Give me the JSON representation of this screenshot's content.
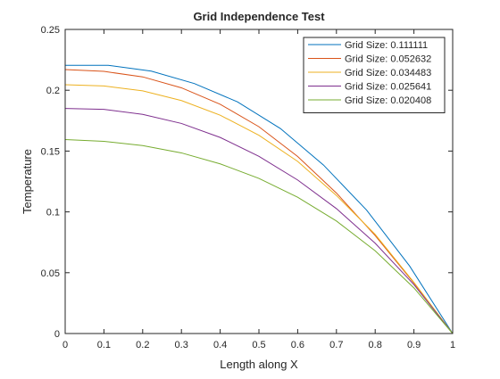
{
  "chart_data": {
    "type": "line",
    "title": "Grid Independence Test",
    "xlabel": "Length along X",
    "ylabel": "Temperature",
    "xlim": [
      0,
      1
    ],
    "ylim": [
      0,
      0.25
    ],
    "xticks": [
      "0",
      "0.1",
      "0.2",
      "0.3",
      "0.4",
      "0.5",
      "0.6",
      "0.7",
      "0.8",
      "0.9",
      "1"
    ],
    "yticks": [
      "0",
      "0.05",
      "0.1",
      "0.15",
      "0.2",
      "0.25"
    ],
    "grid": false,
    "legend_position": "top-right",
    "series": [
      {
        "name": "Grid Size: 0.111111",
        "color": "#0072BD",
        "x": [
          0,
          0.111111,
          0.222222,
          0.333333,
          0.444444,
          0.555556,
          0.666667,
          0.777778,
          0.888889,
          1
        ],
        "y": [
          0.2205,
          0.2205,
          0.2157,
          0.2055,
          0.1905,
          0.1685,
          0.1385,
          0.1015,
          0.0555,
          0
        ]
      },
      {
        "name": "Grid Size: 0.052632",
        "color": "#D95319",
        "x": [
          0,
          0.1,
          0.2,
          0.3,
          0.4,
          0.5,
          0.6,
          0.7,
          0.8,
          0.9,
          1
        ],
        "y": [
          0.217,
          0.2155,
          0.211,
          0.202,
          0.1885,
          0.17,
          0.1455,
          0.1155,
          0.0805,
          0.0415,
          0
        ]
      },
      {
        "name": "Grid Size: 0.034483",
        "color": "#EDB120",
        "x": [
          0,
          0.1,
          0.2,
          0.3,
          0.4,
          0.5,
          0.6,
          0.7,
          0.8,
          0.9,
          1
        ],
        "y": [
          0.2045,
          0.2035,
          0.1995,
          0.1915,
          0.1795,
          0.163,
          0.1415,
          0.1135,
          0.0815,
          0.042,
          0
        ]
      },
      {
        "name": "Grid Size: 0.025641",
        "color": "#7E2F8E",
        "x": [
          0,
          0.1,
          0.2,
          0.3,
          0.4,
          0.5,
          0.6,
          0.7,
          0.8,
          0.9,
          1
        ],
        "y": [
          0.185,
          0.1843,
          0.1802,
          0.1727,
          0.1612,
          0.1457,
          0.1262,
          0.1027,
          0.0742,
          0.0402,
          0
        ]
      },
      {
        "name": "Grid Size: 0.020408",
        "color": "#77AC30",
        "x": [
          0,
          0.1,
          0.2,
          0.3,
          0.4,
          0.5,
          0.6,
          0.7,
          0.8,
          0.9,
          1
        ],
        "y": [
          0.1595,
          0.158,
          0.1545,
          0.1485,
          0.1395,
          0.1275,
          0.112,
          0.0925,
          0.068,
          0.0375,
          0
        ]
      }
    ]
  }
}
